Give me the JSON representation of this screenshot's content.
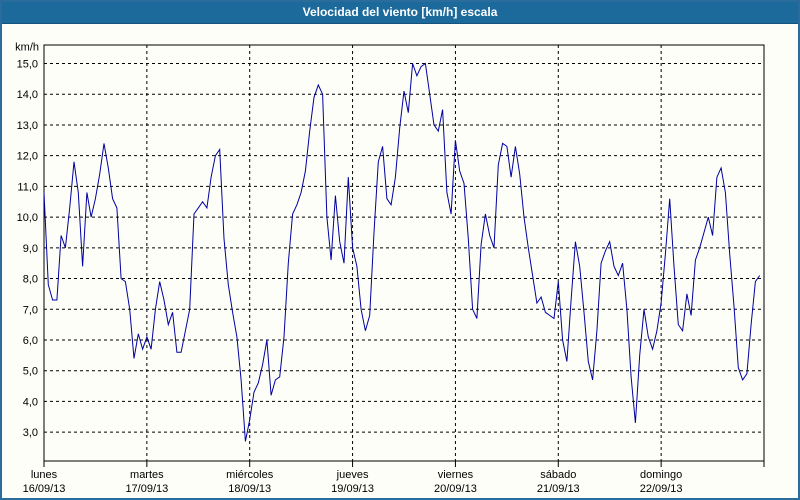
{
  "window": {
    "title": "Velocidad del viento [km/h] escala"
  },
  "colors": {
    "titlebar": "#1c699c",
    "window_border": "#2a6d9c",
    "background": "#fdfef8",
    "grid": "#000000",
    "axis_text": "#000000",
    "title_text": "#ffffff",
    "line": "#0000a0"
  },
  "chart_data": {
    "type": "line",
    "title": "Velocidad del viento [km/h] escala",
    "series_name": "Velocidad del viento",
    "line_color": "#0000a0",
    "grid": "dashed",
    "legend_position": "none",
    "points_per_day": 24,
    "y_axis": {
      "unit_label": "km/h",
      "min": 3,
      "max": 15,
      "tick_values": [
        15,
        14,
        13,
        12,
        11,
        10,
        9,
        8,
        7,
        6,
        5,
        4,
        3
      ],
      "tick_labels": [
        "15,0",
        "14,0",
        "13,0",
        "12,0",
        "11,0",
        "10,0",
        "9,0",
        "8,0",
        "7,0",
        "6,0",
        "5,0",
        "4,0",
        "3,0"
      ]
    },
    "days": [
      {
        "weekday": "lunes",
        "date": "16/09/13",
        "hourly_values": [
          10.8,
          7.8,
          7.3,
          7.3,
          9.4,
          9.0,
          10.3,
          11.8,
          10.8,
          8.4,
          10.8,
          10.0,
          10.6,
          11.4,
          12.4,
          11.6,
          10.6,
          10.3,
          8.0,
          7.9,
          7.0,
          5.4,
          6.2,
          5.7
        ]
      },
      {
        "weekday": "martes",
        "date": "17/09/13",
        "hourly_values": [
          6.1,
          5.7,
          7.0,
          7.9,
          7.3,
          6.5,
          6.9,
          5.6,
          5.6,
          6.3,
          7.0,
          10.1,
          10.3,
          10.5,
          10.3,
          11.3,
          12.0,
          12.2,
          9.3,
          7.8,
          6.9,
          6.1,
          4.7,
          2.7
        ]
      },
      {
        "weekday": "miércoles",
        "date": "18/09/13",
        "hourly_values": [
          3.4,
          4.3,
          4.6,
          5.2,
          6.0,
          4.2,
          4.7,
          4.8,
          6.1,
          8.5,
          10.1,
          10.4,
          10.8,
          11.5,
          12.8,
          13.9,
          14.3,
          14.0,
          10.0,
          8.6,
          10.7,
          9.2,
          8.5,
          11.3
        ]
      },
      {
        "weekday": "jueves",
        "date": "19/09/13",
        "hourly_values": [
          9.0,
          8.4,
          7.0,
          6.3,
          6.8,
          9.5,
          11.8,
          12.3,
          10.6,
          10.4,
          11.3,
          12.9,
          14.1,
          13.4,
          15.0,
          14.6,
          14.9,
          15.0,
          14.0,
          13.0,
          12.8,
          13.5,
          10.8,
          10.1
        ]
      },
      {
        "weekday": "viernes",
        "date": "20/09/13",
        "hourly_values": [
          12.5,
          11.5,
          11.1,
          9.3,
          7.0,
          6.7,
          9.1,
          10.1,
          9.4,
          9.0,
          11.7,
          12.4,
          12.3,
          11.3,
          12.3,
          11.4,
          10.0,
          9.0,
          8.1,
          7.2,
          7.4,
          6.9,
          6.8,
          6.7
        ]
      },
      {
        "weekday": "sábado",
        "date": "21/09/13",
        "hourly_values": [
          7.9,
          6.0,
          5.3,
          7.3,
          9.2,
          8.4,
          6.9,
          5.3,
          4.7,
          6.3,
          8.5,
          8.9,
          9.2,
          8.4,
          8.1,
          8.5,
          7.0,
          4.8,
          3.3,
          5.5,
          7.0,
          6.1,
          5.7,
          6.3
        ]
      },
      {
        "weekday": "domingo",
        "date": "22/09/13",
        "hourly_values": [
          7.2,
          8.8,
          10.6,
          8.4,
          6.5,
          6.3,
          7.5,
          6.8,
          8.6,
          9.0,
          9.5,
          10.0,
          9.4,
          11.3,
          11.6,
          10.8,
          8.8,
          7.1,
          5.1,
          4.7,
          4.9,
          6.5,
          7.9,
          8.1
        ]
      }
    ]
  }
}
